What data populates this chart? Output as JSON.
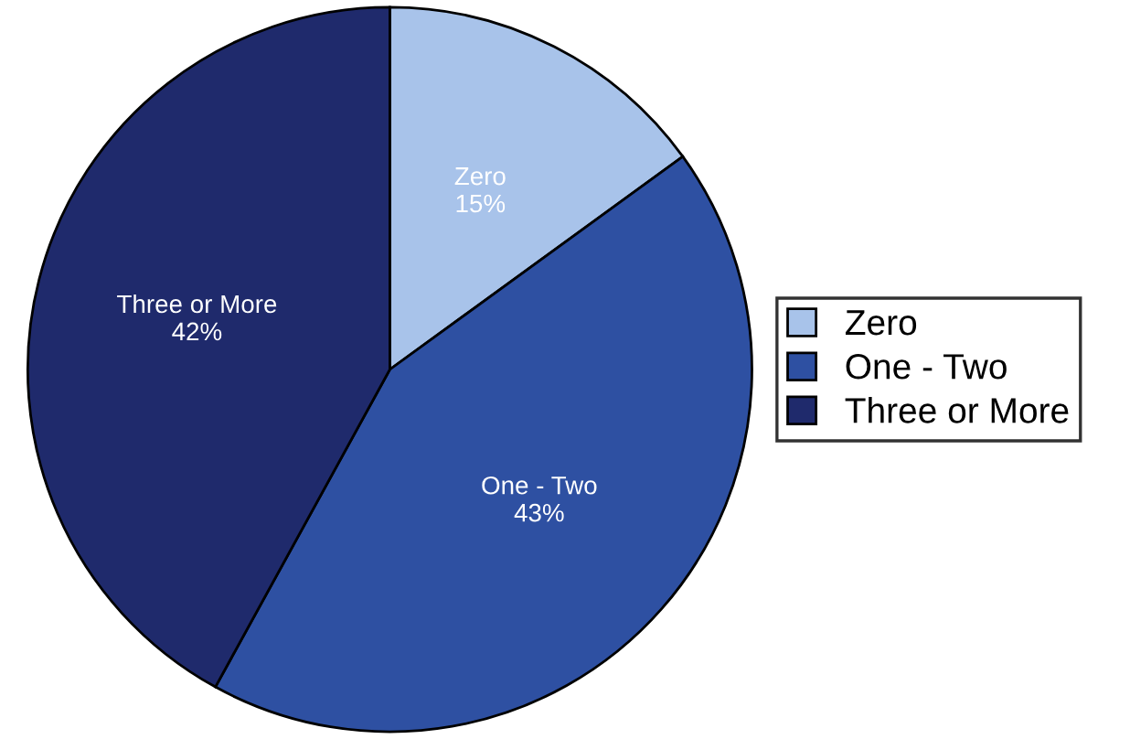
{
  "chart_data": {
    "type": "pie",
    "categories": [
      "Zero",
      "One - Two",
      "Three or More"
    ],
    "values": [
      15,
      43,
      42
    ],
    "colors": [
      "#a8c3ea",
      "#2e50a2",
      "#1f2a6c"
    ],
    "value_labels": [
      "15%",
      "43%",
      "42%"
    ],
    "legend": "right"
  }
}
